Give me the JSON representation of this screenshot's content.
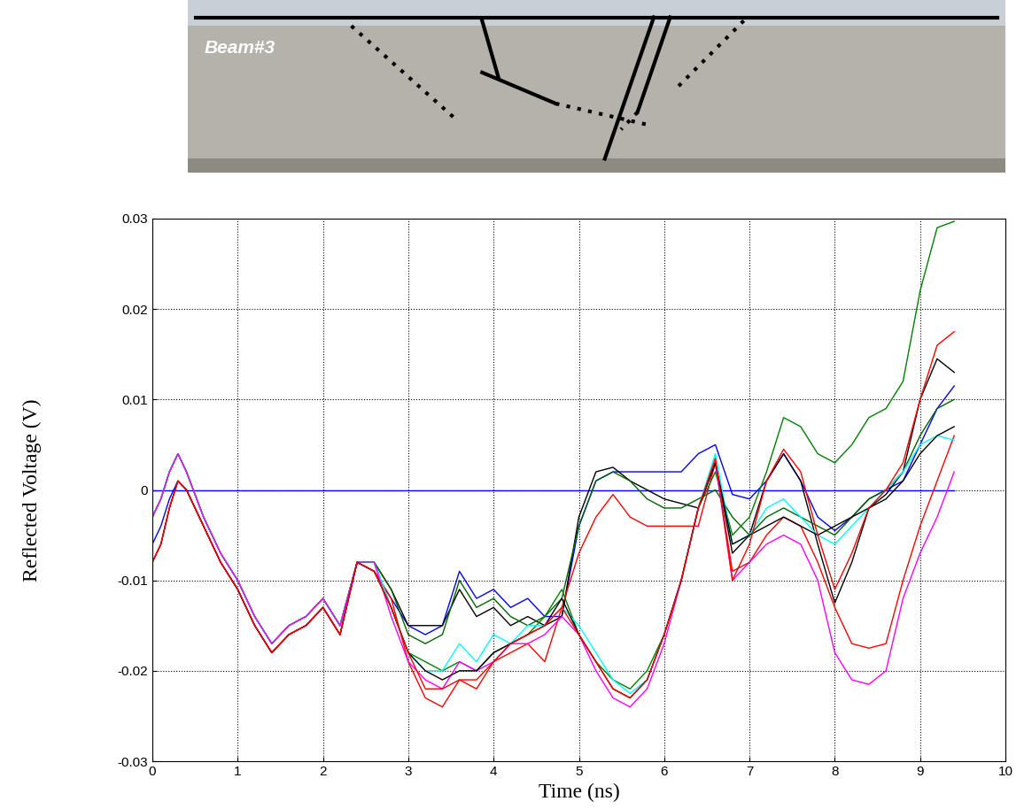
{
  "chart_data": {
    "type": "line",
    "x_label": "Time (ns)",
    "y_label": "Reflected Voltage (V)",
    "xlim": [
      0,
      10
    ],
    "xticks": [
      0,
      1,
      2,
      3,
      4,
      5,
      6,
      7,
      8,
      9,
      10
    ],
    "ylim": [
      -0.03,
      0.03
    ],
    "yticks": [
      -0.03,
      -0.02,
      -0.01,
      0,
      0.01,
      0.02,
      0.03
    ],
    "grid": true,
    "line_style": "solid",
    "x": [
      0,
      0.1,
      0.2,
      0.3,
      0.4,
      0.6,
      0.8,
      1.0,
      1.2,
      1.4,
      1.6,
      1.8,
      2.0,
      2.2,
      2.4,
      2.6,
      2.8,
      3.0,
      3.2,
      3.4,
      3.6,
      3.8,
      4.0,
      4.2,
      4.4,
      4.6,
      4.8,
      5.0,
      5.2,
      5.4,
      5.6,
      5.8,
      6.0,
      6.2,
      6.4,
      6.6,
      6.8,
      7.0,
      7.2,
      7.4,
      7.6,
      7.8,
      8.0,
      8.2,
      8.4,
      8.6,
      8.8,
      9.0,
      9.2,
      9.4
    ],
    "series": [
      {
        "color": "#0000ff",
        "values": [
          0,
          0,
          0,
          0,
          0,
          0,
          0,
          0,
          0,
          0,
          0,
          0,
          0,
          0,
          0,
          0,
          0,
          0,
          0,
          0,
          0,
          0,
          0,
          0,
          0,
          0,
          0,
          0,
          0,
          0,
          0,
          0,
          0,
          0,
          0,
          0,
          0,
          0,
          0,
          0,
          0,
          0,
          0,
          0,
          0,
          0,
          0,
          0,
          0,
          0
        ]
      },
      {
        "color": "#0000ff",
        "values": [
          -0.006,
          -0.004,
          -0.001,
          0.001,
          0.0,
          -0.004,
          -0.008,
          -0.011,
          -0.015,
          -0.018,
          -0.016,
          -0.015,
          -0.013,
          -0.016,
          -0.008,
          -0.009,
          -0.012,
          -0.015,
          -0.016,
          -0.015,
          -0.009,
          -0.012,
          -0.011,
          -0.013,
          -0.012,
          -0.014,
          -0.014,
          -0.004,
          0.001,
          0.002,
          0.002,
          0.002,
          0.002,
          0.002,
          0.004,
          0.005,
          -0.0005,
          -0.001,
          0.001,
          0.004,
          0.001,
          -0.003,
          -0.0045,
          -0.003,
          -0.001,
          0.0,
          0.001,
          0.005,
          0.009,
          0.0115
        ]
      },
      {
        "color": "#000000",
        "values": [
          -0.003,
          -0.001,
          0.002,
          0.004,
          0.002,
          -0.003,
          -0.007,
          -0.01,
          -0.014,
          -0.017,
          -0.015,
          -0.014,
          -0.012,
          -0.015,
          -0.008,
          -0.008,
          -0.011,
          -0.015,
          -0.015,
          -0.015,
          -0.011,
          -0.014,
          -0.013,
          -0.015,
          -0.014,
          -0.015,
          -0.014,
          -0.003,
          0.002,
          0.0025,
          0.001,
          0.0,
          -0.001,
          -0.0015,
          -0.002,
          0.003,
          -0.007,
          -0.005,
          0.001,
          0.004,
          0.001,
          -0.006,
          -0.0125,
          -0.008,
          -0.002,
          -0.0005,
          0.002,
          0.01,
          0.0145,
          0.013
        ]
      },
      {
        "color": "#006400",
        "values": [
          -0.003,
          -0.001,
          0.002,
          0.004,
          0.002,
          -0.003,
          -0.007,
          -0.01,
          -0.014,
          -0.017,
          -0.015,
          -0.014,
          -0.012,
          -0.015,
          -0.008,
          -0.008,
          -0.011,
          -0.016,
          -0.017,
          -0.016,
          -0.01,
          -0.013,
          -0.012,
          -0.014,
          -0.015,
          -0.014,
          -0.012,
          -0.004,
          0.001,
          0.002,
          0.001,
          -0.001,
          -0.002,
          -0.002,
          -0.001,
          0.0,
          -0.003,
          -0.005,
          -0.003,
          -0.002,
          -0.003,
          -0.004,
          -0.005,
          -0.003,
          -0.001,
          0.0,
          0.002,
          0.006,
          0.009,
          0.01
        ]
      },
      {
        "color": "#ff0000",
        "values": [
          -0.008,
          -0.006,
          -0.002,
          0.001,
          0.0,
          -0.004,
          -0.008,
          -0.011,
          -0.015,
          -0.018,
          -0.016,
          -0.015,
          -0.013,
          -0.016,
          -0.008,
          -0.009,
          -0.012,
          -0.019,
          -0.023,
          -0.024,
          -0.021,
          -0.021,
          -0.019,
          -0.018,
          -0.017,
          -0.019,
          -0.013,
          -0.007,
          -0.003,
          -0.0005,
          -0.003,
          -0.004,
          -0.004,
          -0.004,
          -0.004,
          0.003,
          -0.009,
          -0.008,
          -0.005,
          -0.003,
          -0.004,
          -0.008,
          -0.013,
          -0.017,
          -0.0175,
          -0.017,
          -0.01,
          -0.004,
          0.001,
          0.006
        ]
      },
      {
        "color": "#008000",
        "values": [
          -0.003,
          -0.001,
          0.002,
          0.004,
          0.002,
          -0.003,
          -0.007,
          -0.01,
          -0.014,
          -0.017,
          -0.015,
          -0.014,
          -0.012,
          -0.015,
          -0.008,
          -0.008,
          -0.013,
          -0.018,
          -0.019,
          -0.02,
          -0.019,
          -0.02,
          -0.018,
          -0.017,
          -0.016,
          -0.014,
          -0.011,
          -0.016,
          -0.019,
          -0.021,
          -0.022,
          -0.02,
          -0.016,
          -0.01,
          -0.002,
          0.002,
          -0.005,
          -0.003,
          0.002,
          0.008,
          0.007,
          0.004,
          0.003,
          0.005,
          0.008,
          0.009,
          0.012,
          0.022,
          0.029,
          0.0297
        ]
      },
      {
        "color": "#00ffff",
        "values": [
          -0.003,
          -0.001,
          0.002,
          0.004,
          0.002,
          -0.003,
          -0.007,
          -0.01,
          -0.014,
          -0.017,
          -0.015,
          -0.014,
          -0.012,
          -0.015,
          -0.008,
          -0.008,
          -0.013,
          -0.018,
          -0.02,
          -0.02,
          -0.017,
          -0.019,
          -0.016,
          -0.017,
          -0.015,
          -0.015,
          -0.013,
          -0.015,
          -0.018,
          -0.021,
          -0.0225,
          -0.021,
          -0.016,
          -0.01,
          -0.002,
          0.004,
          -0.006,
          -0.005,
          -0.002,
          -0.001,
          -0.003,
          -0.005,
          -0.006,
          -0.004,
          -0.002,
          0.0,
          0.002,
          0.005,
          0.006,
          0.0055
        ]
      },
      {
        "color": "#ff00ff",
        "values": [
          -0.003,
          -0.001,
          0.002,
          0.004,
          0.002,
          -0.003,
          -0.007,
          -0.01,
          -0.014,
          -0.017,
          -0.015,
          -0.014,
          -0.012,
          -0.015,
          -0.008,
          -0.008,
          -0.014,
          -0.019,
          -0.021,
          -0.022,
          -0.019,
          -0.02,
          -0.019,
          -0.017,
          -0.017,
          -0.016,
          -0.014,
          -0.016,
          -0.02,
          -0.023,
          -0.024,
          -0.022,
          -0.017,
          -0.01,
          -0.002,
          0.003,
          -0.01,
          -0.008,
          -0.006,
          -0.005,
          -0.006,
          -0.01,
          -0.018,
          -0.021,
          -0.0215,
          -0.02,
          -0.012,
          -0.007,
          -0.003,
          0.002
        ]
      },
      {
        "color": "#000000",
        "values": [
          -0.008,
          -0.006,
          -0.002,
          0.001,
          0.0,
          -0.004,
          -0.008,
          -0.011,
          -0.015,
          -0.018,
          -0.016,
          -0.015,
          -0.013,
          -0.016,
          -0.008,
          -0.009,
          -0.013,
          -0.018,
          -0.02,
          -0.021,
          -0.02,
          -0.02,
          -0.018,
          -0.017,
          -0.016,
          -0.015,
          -0.012,
          -0.016,
          -0.019,
          -0.022,
          -0.023,
          -0.021,
          -0.016,
          -0.01,
          -0.002,
          0.003,
          -0.006,
          -0.005,
          -0.004,
          -0.003,
          -0.004,
          -0.005,
          -0.004,
          -0.003,
          -0.002,
          -0.001,
          0.001,
          0.004,
          0.006,
          0.007
        ]
      },
      {
        "color": "#ff0000",
        "values": [
          -0.008,
          -0.006,
          -0.002,
          0.001,
          0.0,
          -0.004,
          -0.008,
          -0.011,
          -0.015,
          -0.018,
          -0.016,
          -0.015,
          -0.013,
          -0.016,
          -0.008,
          -0.009,
          -0.013,
          -0.018,
          -0.022,
          -0.022,
          -0.021,
          -0.022,
          -0.019,
          -0.017,
          -0.016,
          -0.015,
          -0.013,
          -0.016,
          -0.019,
          -0.022,
          -0.023,
          -0.021,
          -0.016,
          -0.01,
          -0.002,
          0.0035,
          -0.01,
          -0.006,
          0.001,
          0.0045,
          0.002,
          -0.005,
          -0.011,
          -0.007,
          -0.002,
          0.0,
          0.003,
          0.01,
          0.016,
          0.0175
        ]
      }
    ]
  },
  "photo": {
    "label": "Beam#3"
  }
}
